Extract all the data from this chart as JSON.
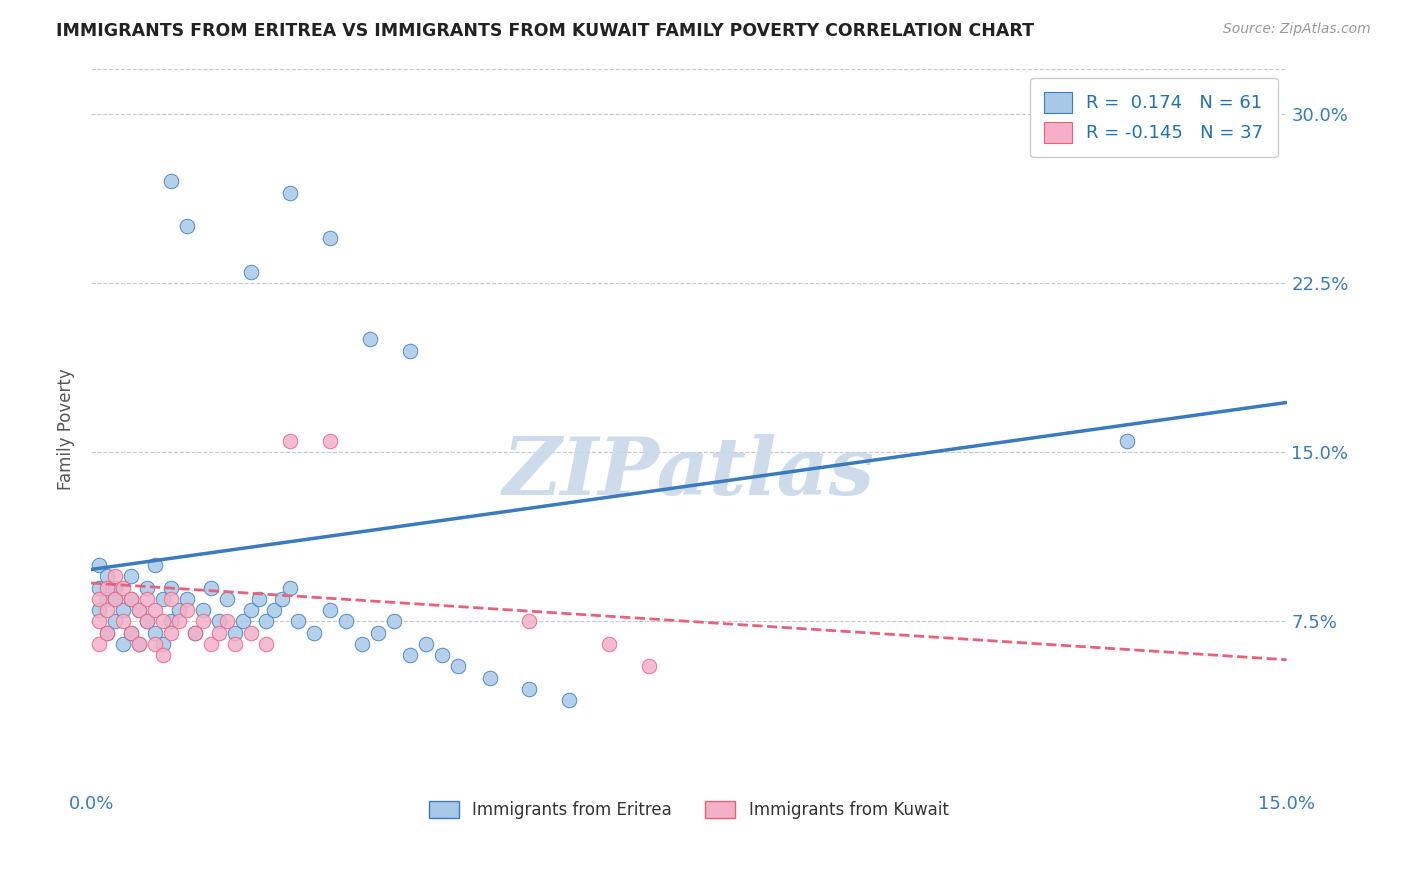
{
  "title": "IMMIGRANTS FROM ERITREA VS IMMIGRANTS FROM KUWAIT FAMILY POVERTY CORRELATION CHART",
  "source": "Source: ZipAtlas.com",
  "ylabel": "Family Poverty",
  "legend_eritrea": "Immigrants from Eritrea",
  "legend_kuwait": "Immigrants from Kuwait",
  "R_eritrea": 0.174,
  "N_eritrea": 61,
  "R_kuwait": -0.145,
  "N_kuwait": 37,
  "xmin": 0.0,
  "xmax": 0.15,
  "ymin": 0.0,
  "ymax": 0.32,
  "yticks": [
    0.075,
    0.15,
    0.225,
    0.3
  ],
  "ytick_labels": [
    "7.5%",
    "15.0%",
    "22.5%",
    "30.0%"
  ],
  "color_eritrea": "#a8c8e8",
  "color_kuwait": "#f4b0c8",
  "trendline_eritrea_color": "#3a7abf",
  "trendline_kuwait_color": "#e8607a",
  "background_color": "#ffffff",
  "watermark": "ZIPatlas",
  "watermark_color": "#c8d8e8",
  "eritrea_x": [
    0.001,
    0.001,
    0.001,
    0.002,
    0.002,
    0.002,
    0.003,
    0.003,
    0.003,
    0.004,
    0.004,
    0.005,
    0.005,
    0.005,
    0.006,
    0.006,
    0.007,
    0.007,
    0.008,
    0.008,
    0.009,
    0.009,
    0.01,
    0.01,
    0.011,
    0.012,
    0.013,
    0.014,
    0.015,
    0.016,
    0.017,
    0.018,
    0.019,
    0.02,
    0.021,
    0.022,
    0.023,
    0.024,
    0.025,
    0.026,
    0.028,
    0.03,
    0.032,
    0.034,
    0.036,
    0.038,
    0.04,
    0.042,
    0.044,
    0.046,
    0.05,
    0.055,
    0.06,
    0.01,
    0.012,
    0.02,
    0.025,
    0.03,
    0.13,
    0.035,
    0.04
  ],
  "eritrea_y": [
    0.1,
    0.09,
    0.08,
    0.085,
    0.095,
    0.07,
    0.09,
    0.085,
    0.075,
    0.08,
    0.065,
    0.095,
    0.085,
    0.07,
    0.08,
    0.065,
    0.09,
    0.075,
    0.1,
    0.07,
    0.085,
    0.065,
    0.09,
    0.075,
    0.08,
    0.085,
    0.07,
    0.08,
    0.09,
    0.075,
    0.085,
    0.07,
    0.075,
    0.08,
    0.085,
    0.075,
    0.08,
    0.085,
    0.09,
    0.075,
    0.07,
    0.08,
    0.075,
    0.065,
    0.07,
    0.075,
    0.06,
    0.065,
    0.06,
    0.055,
    0.05,
    0.045,
    0.04,
    0.27,
    0.25,
    0.23,
    0.265,
    0.245,
    0.155,
    0.2,
    0.195
  ],
  "kuwait_x": [
    0.001,
    0.001,
    0.001,
    0.002,
    0.002,
    0.002,
    0.003,
    0.003,
    0.004,
    0.004,
    0.005,
    0.005,
    0.006,
    0.006,
    0.007,
    0.007,
    0.008,
    0.008,
    0.009,
    0.009,
    0.01,
    0.01,
    0.011,
    0.012,
    0.013,
    0.014,
    0.015,
    0.016,
    0.017,
    0.018,
    0.02,
    0.022,
    0.025,
    0.03,
    0.055,
    0.065,
    0.07
  ],
  "kuwait_y": [
    0.085,
    0.075,
    0.065,
    0.09,
    0.08,
    0.07,
    0.095,
    0.085,
    0.09,
    0.075,
    0.085,
    0.07,
    0.08,
    0.065,
    0.085,
    0.075,
    0.08,
    0.065,
    0.075,
    0.06,
    0.085,
    0.07,
    0.075,
    0.08,
    0.07,
    0.075,
    0.065,
    0.07,
    0.075,
    0.065,
    0.07,
    0.065,
    0.155,
    0.155,
    0.075,
    0.065,
    0.055
  ],
  "trendline_eritrea": [
    0.098,
    0.172
  ],
  "trendline_kuwait": [
    0.092,
    0.058
  ]
}
